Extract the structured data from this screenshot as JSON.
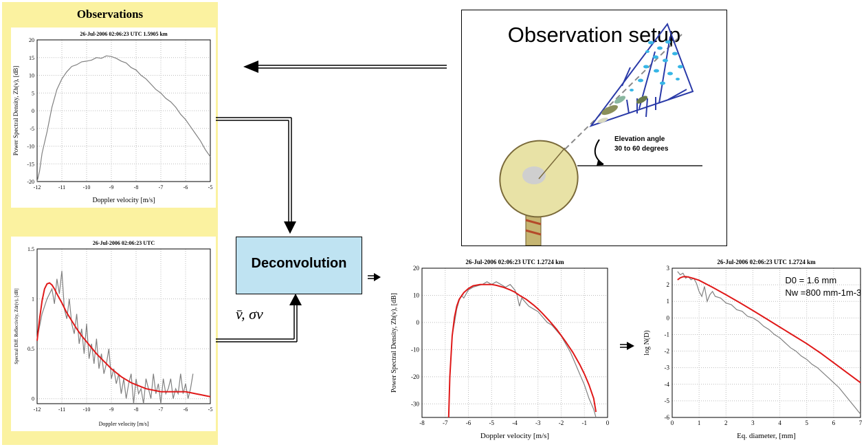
{
  "observations_panel": {
    "title": "Observations"
  },
  "setup": {
    "title": "Observation setup",
    "elevation_line1": "Elevation angle",
    "elevation_line2": "30 to 60 degrees"
  },
  "deconvolution": {
    "label": "Deconvolution",
    "params_label": "v̄, σv"
  },
  "chart_data": [
    {
      "id": "obs_psd",
      "type": "line",
      "title": "26-Jul-2006 02:06:23 UTC  1.5905 km",
      "xlabel": "Doppler velocity [m/s]",
      "ylabel": "Power Spectral Density, Zh(v), [dB]",
      "xlim": [
        -12,
        -5
      ],
      "ylim": [
        -20,
        20
      ],
      "xticks": [
        -12,
        -11,
        -10,
        -9,
        -8,
        -7,
        -6,
        -5
      ],
      "yticks": [
        -20,
        -15,
        -10,
        -5,
        0,
        5,
        10,
        15,
        20
      ],
      "grid": true,
      "series": [
        {
          "color": "#808080",
          "x": [
            -12,
            -11.9,
            -11.8,
            -11.6,
            -11.4,
            -11.2,
            -11.0,
            -10.8,
            -10.6,
            -10.4,
            -10.2,
            -10.0,
            -9.8,
            -9.6,
            -9.4,
            -9.2,
            -9.0,
            -8.8,
            -8.6,
            -8.4,
            -8.2,
            -8.0,
            -7.8,
            -7.6,
            -7.4,
            -7.2,
            -7.0,
            -6.8,
            -6.6,
            -6.4,
            -6.2,
            -6.0,
            -5.8,
            -5.6,
            -5.4,
            -5.2,
            -5.0
          ],
          "y": [
            -20,
            -17,
            -12,
            -6,
            1,
            6,
            9,
            11,
            12.5,
            13,
            13.8,
            14,
            14.3,
            15,
            14.8,
            15.5,
            15.3,
            14.8,
            14,
            13.5,
            12.2,
            11.5,
            10,
            9,
            7.5,
            6,
            5,
            3.5,
            2.5,
            1,
            -1,
            -2.5,
            -4.5,
            -6.5,
            -8.5,
            -11,
            -13
          ]
        }
      ]
    },
    {
      "id": "obs_zdr",
      "type": "line",
      "title": "26-Jul-2006 02:06:23 UTC",
      "xlabel": "Doppler velocity [m/s]",
      "ylabel": "Spectral Diff. Reflectivity, Zdr(v), [dB]",
      "xlim": [
        -12,
        -5
      ],
      "ylim": [
        -0.05,
        1.5
      ],
      "xticks": [
        -12,
        -11,
        -10,
        -9,
        -8,
        -7,
        -6,
        -5
      ],
      "yticks": [
        0,
        0.5,
        1,
        1.5
      ],
      "grid": true,
      "series": [
        {
          "color": "#808080",
          "x": [
            -12,
            -11.8,
            -11.6,
            -11.4,
            -11.3,
            -11.2,
            -11.1,
            -11.0,
            -10.9,
            -10.8,
            -10.7,
            -10.6,
            -10.5,
            -10.4,
            -10.3,
            -10.2,
            -10.1,
            -10.0,
            -9.9,
            -9.8,
            -9.7,
            -9.6,
            -9.5,
            -9.4,
            -9.3,
            -9.2,
            -9.1,
            -9.0,
            -8.9,
            -8.8,
            -8.7,
            -8.6,
            -8.5,
            -8.4,
            -8.3,
            -8.2,
            -8.1,
            -8.0,
            -7.9,
            -7.8,
            -7.7,
            -7.6,
            -7.5,
            -7.4,
            -7.3,
            -7.2,
            -7.1,
            -7.0,
            -6.9,
            -6.8,
            -6.7,
            -6.6,
            -6.5,
            -6.4,
            -6.3,
            -6.2,
            -6.1,
            -6.0,
            -5.9,
            -5.8,
            -5.7
          ],
          "y": [
            0.6,
            0.85,
            1.0,
            1.1,
            0.95,
            1.2,
            1.05,
            1.28,
            0.9,
            0.8,
            1.0,
            0.75,
            0.65,
            0.85,
            0.55,
            0.7,
            0.45,
            0.75,
            0.4,
            0.55,
            0.35,
            0.6,
            0.3,
            0.45,
            0.25,
            0.35,
            0.5,
            0.2,
            0.3,
            0.15,
            0.25,
            0.05,
            0.2,
            0.0,
            0.15,
            0.25,
            -0.05,
            0.2,
            0.05,
            0.1,
            -0.05,
            0.2,
            0.1,
            0.0,
            0.25,
            0.05,
            0.15,
            -0.05,
            0.2,
            0.05,
            0.1,
            0.2,
            0.0,
            0.1,
            0.05,
            0.25,
            0.05,
            0.15,
            0.0,
            0.1,
            0.25
          ]
        },
        {
          "color": "#e01818",
          "x": [
            -12,
            -11.9,
            -11.8,
            -11.7,
            -11.6,
            -11.5,
            -11.4,
            -11.3,
            -11.2,
            -11.0,
            -10.8,
            -10.6,
            -10.4,
            -10.2,
            -10.0,
            -9.8,
            -9.6,
            -9.4,
            -9.2,
            -9.0,
            -8.8,
            -8.6,
            -8.4,
            -8.2,
            -8.0,
            -7.8,
            -7.6,
            -7.4,
            -7.2,
            -7.0,
            -6.8,
            -6.6,
            -6.4,
            -6.2,
            -6.0,
            -5.8,
            -5.6,
            -5.4,
            -5.2,
            -5.0
          ],
          "y": [
            0.58,
            0.8,
            0.98,
            1.1,
            1.15,
            1.16,
            1.14,
            1.1,
            1.05,
            0.96,
            0.86,
            0.78,
            0.7,
            0.63,
            0.57,
            0.51,
            0.45,
            0.4,
            0.35,
            0.3,
            0.26,
            0.22,
            0.19,
            0.16,
            0.14,
            0.12,
            0.1,
            0.09,
            0.08,
            0.07,
            0.07,
            0.07,
            0.07,
            0.07,
            0.07,
            0.06,
            0.05,
            0.04,
            0.03,
            0.02
          ]
        }
      ]
    },
    {
      "id": "result_psd",
      "type": "line",
      "title": "26-Jul-2006 02:06:23 UTC  1.2724 km",
      "xlabel": "Doppler velocity [m/s]",
      "ylabel": "Power Spectral Density, Zh(v), [dB]",
      "xlim": [
        -8,
        0
      ],
      "ylim": [
        -35,
        20
      ],
      "xticks": [
        -8,
        -7,
        -6,
        -5,
        -4,
        -3,
        -2,
        -1,
        0
      ],
      "yticks": [
        -30,
        -20,
        -10,
        0,
        10,
        20
      ],
      "grid": true,
      "series": [
        {
          "color": "#808080",
          "x": [
            -6.7,
            -6.6,
            -6.5,
            -6.4,
            -6.3,
            -6.2,
            -6.0,
            -5.8,
            -5.6,
            -5.4,
            -5.2,
            -5.0,
            -4.8,
            -4.6,
            -4.4,
            -4.2,
            -4.0,
            -3.9,
            -3.8,
            -3.7,
            -3.6,
            -3.4,
            -3.2,
            -3.0,
            -2.8,
            -2.6,
            -2.4,
            -2.2,
            -2.0,
            -1.8,
            -1.6,
            -1.4,
            -1.2,
            -1.0,
            -0.8,
            -0.6,
            -0.5
          ],
          "y": [
            -5,
            0,
            5,
            8,
            10,
            9,
            12,
            13,
            13.5,
            14,
            15,
            14,
            15,
            14,
            13,
            14,
            12,
            10,
            6,
            9,
            8,
            6,
            5,
            4,
            2,
            0,
            -1,
            -3,
            -5,
            -8,
            -11,
            -15,
            -19,
            -23,
            -28,
            -32,
            -35
          ]
        },
        {
          "color": "#e01818",
          "x": [
            -6.85,
            -6.8,
            -6.7,
            -6.6,
            -6.5,
            -6.4,
            -6.2,
            -6.0,
            -5.8,
            -5.5,
            -5.2,
            -5.0,
            -4.8,
            -4.5,
            -4.2,
            -4.0,
            -3.8,
            -3.5,
            -3.2,
            -3.0,
            -2.8,
            -2.5,
            -2.2,
            -2.0,
            -1.8,
            -1.5,
            -1.2,
            -1.0,
            -0.8,
            -0.6,
            -0.5
          ],
          "y": [
            -35,
            -20,
            -5,
            2,
            6,
            8.5,
            11,
            12.5,
            13.5,
            14,
            14,
            14,
            13.7,
            13,
            12,
            11.2,
            10,
            8.5,
            6.5,
            5,
            3.3,
            0.5,
            -2.5,
            -4.8,
            -7.2,
            -11,
            -15.5,
            -19,
            -23,
            -28,
            -33
          ]
        }
      ]
    },
    {
      "id": "result_dsd",
      "type": "line",
      "title": "26-Jul-2006 02:06:23 UTC  1.2724 km",
      "xlabel": "Eq. diameter, [mm]",
      "ylabel": "log N(D)",
      "xlim": [
        0,
        7
      ],
      "ylim": [
        -6,
        3
      ],
      "xticks": [
        0,
        1,
        2,
        3,
        4,
        5,
        6,
        7
      ],
      "yticks": [
        -6,
        -5,
        -4,
        -3,
        -2,
        -1,
        0,
        1,
        2,
        3
      ],
      "grid": true,
      "annotations": [
        "D0 = 1.6 mm",
        "Nw =800 mm-1m-3"
      ],
      "series": [
        {
          "color": "#808080",
          "x": [
            0.2,
            0.3,
            0.4,
            0.5,
            0.6,
            0.7,
            0.8,
            0.9,
            1.0,
            1.1,
            1.2,
            1.3,
            1.4,
            1.5,
            1.6,
            1.8,
            2.0,
            2.2,
            2.4,
            2.6,
            2.8,
            3.0,
            3.2,
            3.4,
            3.6,
            3.8,
            4.0,
            4.2,
            4.4,
            4.6,
            4.8,
            5.0,
            5.2,
            5.4,
            5.6,
            5.8,
            6.0,
            6.2,
            6.4,
            6.6,
            6.8,
            7.0
          ],
          "y": [
            2.8,
            2.6,
            2.7,
            2.4,
            2.5,
            2.3,
            2.4,
            2.1,
            1.6,
            1.3,
            1.9,
            1.0,
            1.4,
            1.6,
            1.3,
            1.2,
            0.9,
            0.8,
            0.5,
            0.4,
            0.1,
            0.0,
            -0.2,
            -0.5,
            -0.7,
            -1.0,
            -1.2,
            -1.5,
            -1.8,
            -2.0,
            -2.3,
            -2.5,
            -2.8,
            -3.0,
            -3.3,
            -3.6,
            -3.9,
            -4.2,
            -4.6,
            -5.0,
            -5.4,
            -5.8
          ]
        },
        {
          "color": "#e01818",
          "x": [
            0.2,
            0.3,
            0.4,
            0.5,
            0.6,
            0.8,
            1.0,
            1.5,
            2.0,
            2.5,
            3.0,
            3.5,
            4.0,
            4.5,
            5.0,
            5.5,
            6.0,
            6.5,
            7.0
          ],
          "y": [
            2.3,
            2.42,
            2.48,
            2.49,
            2.47,
            2.38,
            2.27,
            1.85,
            1.4,
            0.93,
            0.45,
            -0.05,
            -0.55,
            -1.05,
            -1.55,
            -2.1,
            -2.7,
            -3.3,
            -3.9
          ]
        }
      ]
    }
  ]
}
